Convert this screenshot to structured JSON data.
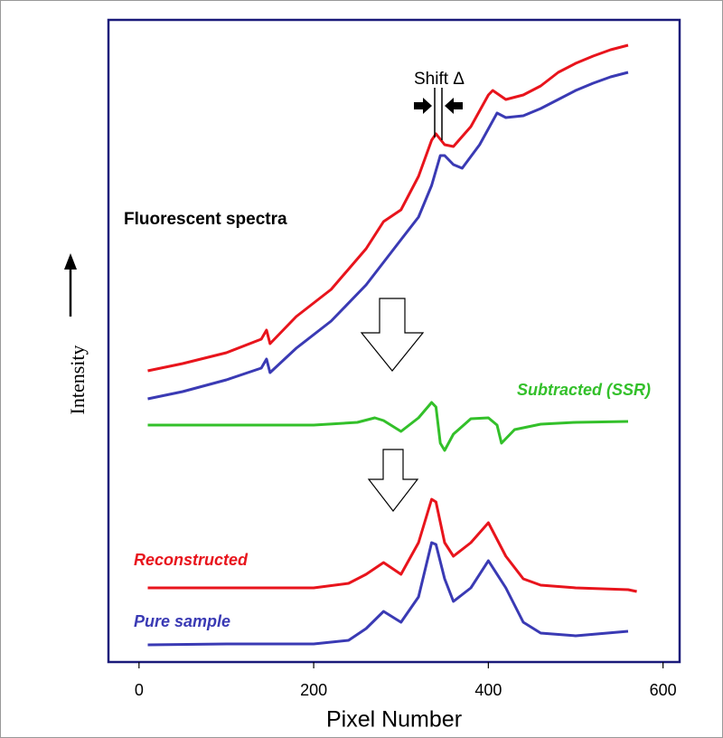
{
  "chart_data": {
    "type": "line",
    "xlabel": "Pixel Number",
    "ylabel": "Intensity",
    "xlim": [
      -35,
      619
    ],
    "ylim": [
      0,
      710
    ],
    "xticks": [
      0,
      200,
      400,
      600
    ],
    "annotations": [
      "Fluorescent spectra",
      "Shift Δ"
    ],
    "series": [
      {
        "color": "#e8141c",
        "x": [
          10,
          50,
          100,
          140,
          146,
          150,
          180,
          220,
          260,
          280,
          300,
          320,
          335,
          340,
          350,
          360,
          380,
          400,
          405,
          420,
          440,
          460,
          480,
          500,
          520,
          540,
          560
        ],
        "values": [
          322,
          330,
          342,
          357,
          367,
          352,
          382,
          412,
          457,
          487,
          500,
          537,
          577,
          584,
          572,
          570,
          592,
          627,
          632,
          622,
          627,
          637,
          652,
          662,
          670,
          677,
          682
        ]
      },
      {
        "color": "#3a3ab4",
        "x": [
          10,
          50,
          100,
          140,
          146,
          150,
          180,
          220,
          260,
          280,
          300,
          320,
          335,
          345,
          350,
          360,
          370,
          390,
          410,
          420,
          440,
          460,
          480,
          500,
          520,
          540,
          560
        ],
        "values": [
          291,
          299,
          312,
          325,
          335,
          320,
          347,
          377,
          417,
          442,
          467,
          492,
          527,
          560,
          560,
          550,
          546,
          572,
          607,
          602,
          604,
          612,
          622,
          632,
          640,
          647,
          652
        ]
      },
      {
        "name": "Subtracted (SSR)",
        "color": "#33c02a",
        "x": [
          10,
          100,
          200,
          250,
          270,
          280,
          300,
          320,
          335,
          340,
          345,
          350,
          360,
          380,
          400,
          410,
          415,
          430,
          460,
          500,
          560
        ],
        "values": [
          262,
          262,
          262,
          265,
          270,
          267,
          255,
          270,
          287,
          282,
          242,
          234,
          252,
          269,
          270,
          262,
          242,
          257,
          263,
          265,
          266
        ]
      },
      {
        "name": "Reconstructed",
        "color": "#e8141c",
        "x": [
          10,
          100,
          200,
          240,
          260,
          280,
          300,
          320,
          335,
          340,
          350,
          360,
          380,
          400,
          420,
          440,
          460,
          500,
          560,
          570
        ],
        "values": [
          82,
          82,
          82,
          87,
          97,
          110,
          97,
          132,
          180,
          177,
          132,
          117,
          132,
          154,
          117,
          92,
          85,
          82,
          80,
          78
        ]
      },
      {
        "name": "Pure sample",
        "color": "#3a3ab4",
        "x": [
          10,
          100,
          200,
          240,
          260,
          280,
          300,
          320,
          335,
          340,
          350,
          360,
          380,
          400,
          420,
          440,
          460,
          500,
          560
        ],
        "values": [
          19,
          20,
          20,
          24,
          37,
          56,
          44,
          72,
          132,
          130,
          92,
          67,
          82,
          112,
          82,
          44,
          32,
          29,
          34
        ]
      }
    ]
  }
}
